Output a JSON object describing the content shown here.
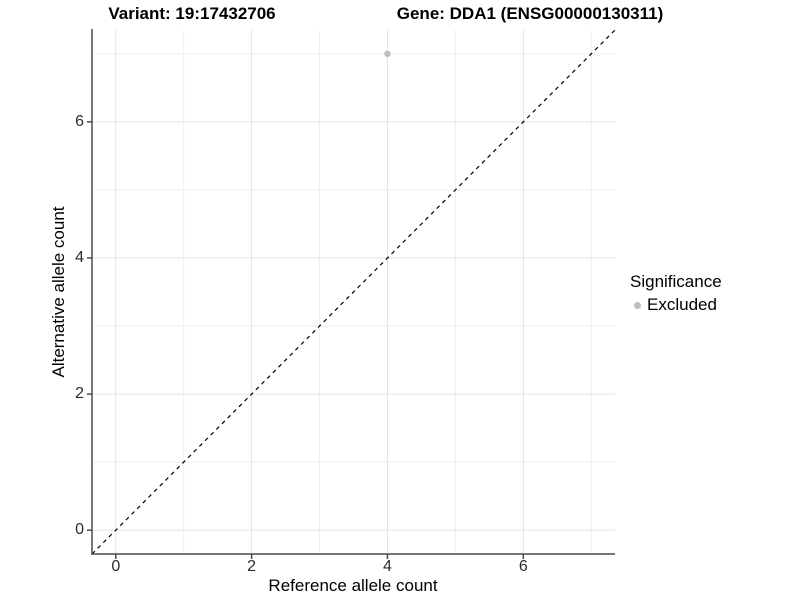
{
  "chart_data": {
    "type": "scatter",
    "titles": {
      "left": "Variant: 19:17432706",
      "right": "Gene: DDA1 (ENSG00000130311)"
    },
    "xlabel": "Reference allele count",
    "ylabel": "Alternative allele count",
    "xlim": [
      -0.35,
      7.35
    ],
    "ylim": [
      -0.35,
      7.35
    ],
    "x_major_ticks": [
      0,
      2,
      4,
      6
    ],
    "x_minor_gridlines": [
      1,
      3,
      5,
      7
    ],
    "y_major_ticks": [
      0,
      2,
      4,
      6
    ],
    "y_minor_gridlines": [
      1,
      3,
      5,
      7
    ],
    "grid": true,
    "legend_position": "right",
    "reference_line": {
      "description": "identity line y = x",
      "style": "dashed",
      "color": "#000000",
      "x1": -0.35,
      "y1": -0.35,
      "x2": 7.35,
      "y2": 7.35
    },
    "series": [
      {
        "name": "Excluded",
        "color": "#bdbdbd",
        "points": [
          {
            "x": 4,
            "y": 7
          }
        ]
      }
    ],
    "legend": {
      "title": "Significance",
      "entries": [
        {
          "label": "Excluded",
          "color": "#bdbdbd"
        }
      ]
    },
    "colors": {
      "background": "#ffffff",
      "grid_major": "#e3e3e3",
      "grid_minor": "#efefef",
      "axis_line": "#4a4a4a",
      "tick_label": "#2b2b2b",
      "text": "#000000"
    }
  }
}
